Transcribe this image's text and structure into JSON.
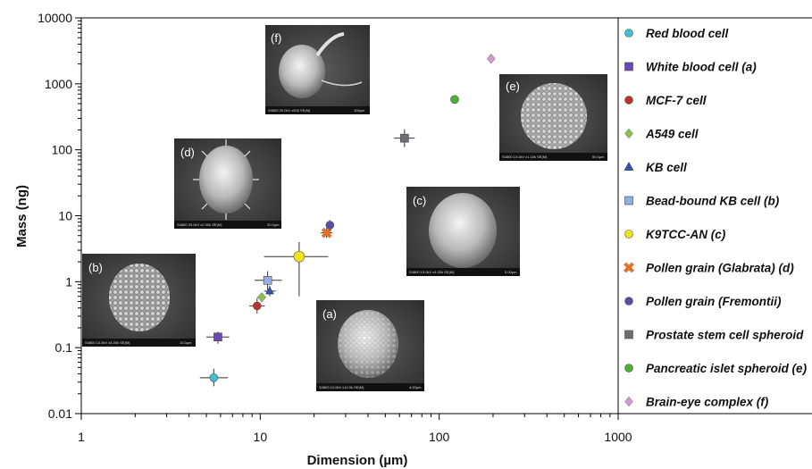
{
  "chart_data": {
    "type": "scatter",
    "xlabel": "Dimension (µm)",
    "ylabel": "Mass (ng)",
    "x_scale": "log",
    "y_scale": "log",
    "xlim": [
      1,
      1000
    ],
    "ylim": [
      0.01,
      10000
    ],
    "x_ticks": [
      "1",
      "10",
      "100",
      "1000"
    ],
    "y_ticks": [
      "0.01",
      "0.1",
      "1",
      "10",
      "100",
      "1000",
      "10000"
    ],
    "legend_position": "right",
    "series": [
      {
        "name": "Red blood cell",
        "marker": "circle",
        "color": "#3fc1d3",
        "x": 5.5,
        "y": 0.035,
        "xerr": [
          4.6,
          6.6
        ],
        "yerr": [
          0.026,
          0.048
        ]
      },
      {
        "name": "White blood cell (a)",
        "marker": "square",
        "color": "#6a48b8",
        "x": 5.8,
        "y": 0.145,
        "xerr": [
          5.0,
          6.7
        ],
        "yerr": [
          0.115,
          0.175
        ]
      },
      {
        "name": "MCF-7 cell",
        "marker": "circle",
        "color": "#b9352f",
        "x": 9.6,
        "y": 0.43,
        "xerr": [
          8.7,
          10.6
        ],
        "yerr": [
          0.33,
          0.56
        ]
      },
      {
        "name": "A549 cell",
        "marker": "diamond",
        "color": "#8cc050",
        "x": 10.2,
        "y": 0.58,
        "xerr": [
          9.6,
          10.8
        ],
        "yerr": [
          0.52,
          0.65
        ]
      },
      {
        "name": "KB cell",
        "marker": "triangle",
        "color": "#3253b8",
        "x": 11.3,
        "y": 0.72,
        "xerr": [
          10.5,
          12.2
        ],
        "yerr": [
          0.6,
          0.87
        ]
      },
      {
        "name": "Bead-bound KB cell (b)",
        "marker": "square",
        "color": "#8fb0e3",
        "x": 11.0,
        "y": 1.05,
        "xerr": [
          9.3,
          13.2
        ],
        "yerr": [
          0.75,
          1.45
        ]
      },
      {
        "name": "K9TCC-AN (c)",
        "marker": "circle",
        "color": "#f2e21a",
        "x": 16.5,
        "y": 2.4,
        "xerr": [
          10.5,
          24.0
        ],
        "yerr": [
          0.6,
          4.0
        ]
      },
      {
        "name": "Pollen grain (Glabrata) (d)",
        "marker": "cross",
        "color": "#e0702a",
        "x": 23.5,
        "y": 5.5,
        "xerr": [
          21.8,
          25.3
        ],
        "yerr": [
          4.6,
          6.6
        ]
      },
      {
        "name": "Pollen grain (Fremontii)",
        "marker": "circle",
        "color": "#5a4fa4",
        "x": 24.5,
        "y": 7.2,
        "xerr": [
          24.2,
          24.8
        ],
        "yerr": [
          6.1,
          8.6
        ]
      },
      {
        "name": "Prostate stem cell spheroid",
        "marker": "square",
        "color": "#6b6f75",
        "x": 64,
        "y": 150,
        "xerr": [
          56,
          73
        ],
        "yerr": [
          110,
          205
        ]
      },
      {
        "name": "Pancreatic islet spheroid (e)",
        "marker": "circle",
        "color": "#4cb035",
        "x": 122,
        "y": 580
      },
      {
        "name": "Brain-eye complex (f)",
        "marker": "diamond",
        "color": "#cc9ccc",
        "x": 195,
        "y": 2400
      }
    ],
    "insets": [
      {
        "label": "(a)",
        "image": "SEM micrograph of a white blood cell"
      },
      {
        "label": "(b)",
        "image": "SEM micrograph of a bead-bound KB cell"
      },
      {
        "label": "(c)",
        "image": "SEM micrograph of a K9TCC-AN cell"
      },
      {
        "label": "(d)",
        "image": "SEM micrograph of a Glabrata pollen grain"
      },
      {
        "label": "(e)",
        "image": "SEM micrograph of a pancreatic islet spheroid"
      },
      {
        "label": "(f)",
        "image": "SEM micrograph of a brain-eye complex"
      }
    ]
  }
}
